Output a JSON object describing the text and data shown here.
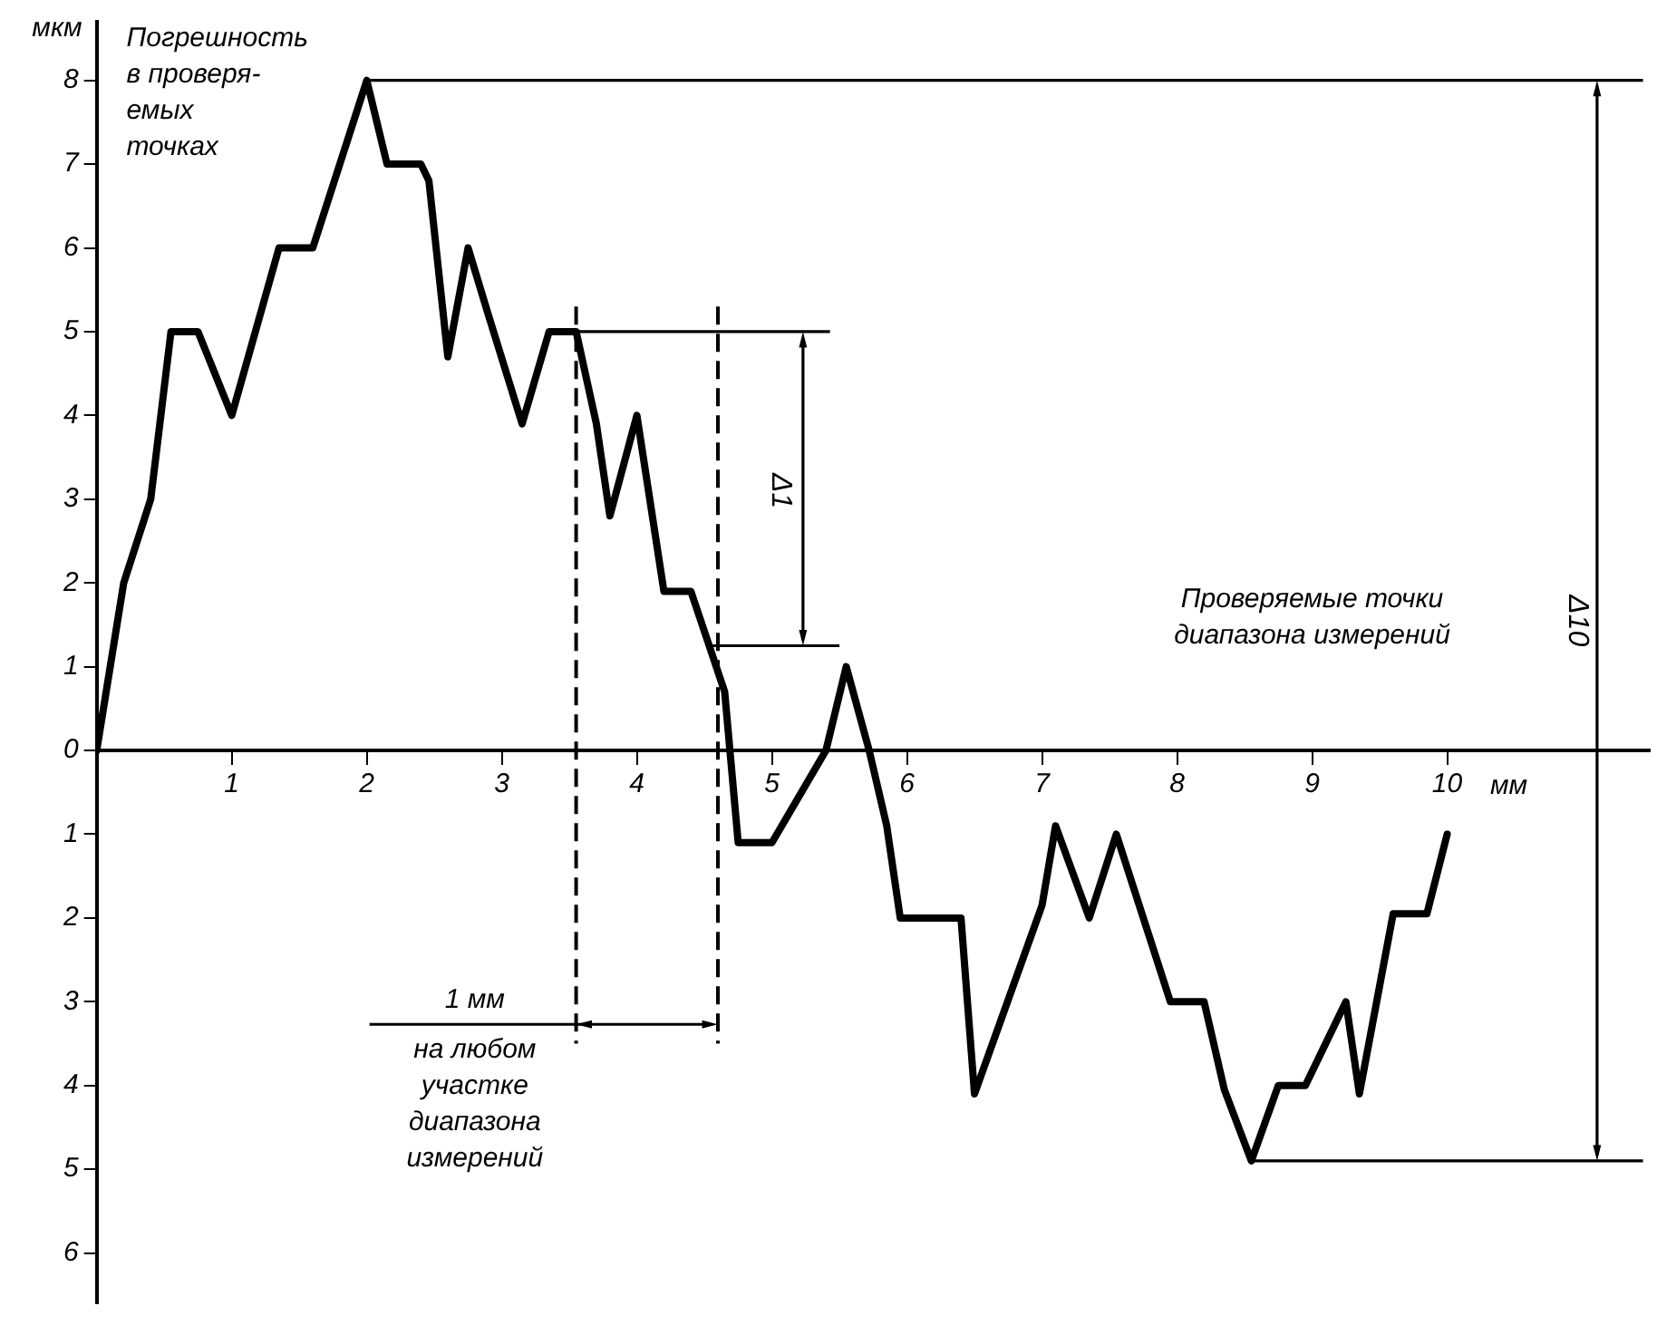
{
  "chart_data": {
    "type": "line",
    "xlabel": "мм",
    "ylabel": "мкм",
    "annotations": [
      "Погрешность\nв проверя-\nемых\nточках",
      "Проверяемые точки\nдиапазона измерений",
      "Δ1",
      "Δ10",
      "1 мм",
      "на любом\nучастке\nдиапазона\nизмерений"
    ],
    "x": [
      0,
      0.2,
      0.4,
      0.55,
      0.75,
      1,
      1.35,
      1.6,
      2,
      2.15,
      2.4,
      2.46,
      2.6,
      2.75,
      2.9,
      3.15,
      3.35,
      3.55,
      3.7,
      3.8,
      4,
      4.2,
      4.4,
      4.65,
      4.75,
      5,
      5.4,
      5.55,
      5.72,
      5.85,
      5.95,
      6.4,
      6.5,
      7,
      7.1,
      7.35,
      7.55,
      7.95,
      8.2,
      8.35,
      8.55,
      8.75,
      8.95,
      9.25,
      9.35,
      9.6,
      9.85,
      10
    ],
    "series": [
      {
        "color": "#000000",
        "values": [
          0,
          2,
          3,
          5,
          5,
          4,
          6,
          6,
          8,
          7,
          7,
          6.8,
          4.7,
          6,
          5.2,
          3.9,
          5,
          5,
          3.9,
          2.8,
          4,
          1.9,
          1.9,
          0.7,
          -1.1,
          -1.1,
          0,
          1,
          0,
          -0.9,
          -2,
          -2,
          -4.1,
          -1.85,
          -0.9,
          -2,
          -1,
          -3,
          -3,
          -4.05,
          -4.9,
          -4,
          -4,
          -3,
          -4.1,
          -1.95,
          -1.95,
          -1
        ]
      }
    ],
    "ref_lines": [
      {
        "axis": "y",
        "value": 8
      },
      {
        "axis": "y",
        "value": 5
      },
      {
        "axis": "y",
        "value": 1.25
      },
      {
        "axis": "y",
        "value": -4.9
      },
      {
        "axis": "x",
        "value": 3.55,
        "line_style": "dashed"
      },
      {
        "axis": "x",
        "value": 4.6,
        "line_style": "dashed"
      }
    ],
    "xlim": [
      0,
      11.5
    ],
    "ylim": [
      -6.6,
      8.7
    ],
    "xticks": [
      1,
      2,
      3,
      4,
      5,
      6,
      7,
      8,
      9,
      10
    ],
    "yticks": [
      8,
      7,
      6,
      5,
      4,
      3,
      2,
      1,
      0,
      {
        "value": -1,
        "label": "1"
      },
      {
        "value": -2,
        "label": "2"
      },
      {
        "value": -3,
        "label": "3"
      },
      {
        "value": -4,
        "label": "4"
      },
      {
        "value": -5,
        "label": "5"
      },
      {
        "value": -6,
        "label": "6"
      }
    ],
    "grid": false,
    "legend": false,
    "marker": "none",
    "line_style": "solid"
  }
}
